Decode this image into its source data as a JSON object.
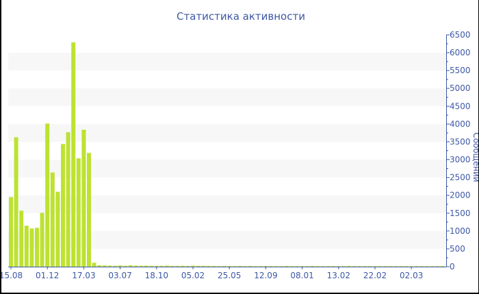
{
  "chart_data": {
    "type": "bar",
    "title": "Статистика активности",
    "ylabel": "Сообщений",
    "xlabel": "",
    "ylim": [
      0,
      6500
    ],
    "yticks": [
      0,
      500,
      1000,
      1500,
      2000,
      2500,
      3000,
      3500,
      4000,
      4500,
      5000,
      5500,
      6000,
      6500
    ],
    "y_axis_position": "right",
    "grid": "alternating horizontal bands",
    "xtick_labels": [
      "15.08",
      "01.12",
      "17.03",
      "03.07",
      "18.10",
      "05.02",
      "25.05",
      "12.09",
      "08.01",
      "13.02",
      "22.02",
      "02.03"
    ],
    "xtick_every_n_bars": 7,
    "bar_color": "#bde232",
    "axis_color": "#3d58a5",
    "band_color": "#f7f7f7",
    "values": [
      1950,
      3630,
      1570,
      1150,
      1070,
      1090,
      1510,
      4015,
      2640,
      2100,
      3440,
      3770,
      6290,
      3040,
      3840,
      3190,
      110,
      40,
      35,
      30,
      25,
      35,
      25,
      40,
      30,
      25,
      30,
      25,
      20,
      25,
      30,
      20,
      20,
      25,
      20,
      30,
      20,
      25,
      20,
      20,
      15,
      20,
      20,
      15,
      20,
      15,
      20,
      15,
      15,
      20,
      15,
      15,
      15,
      20,
      15,
      15,
      15,
      15,
      20,
      15,
      15,
      15,
      15,
      15,
      15,
      20,
      15,
      15,
      15,
      15,
      15,
      15,
      15,
      15,
      15,
      15,
      15,
      15,
      15,
      15,
      15,
      15,
      15,
      15
    ]
  }
}
